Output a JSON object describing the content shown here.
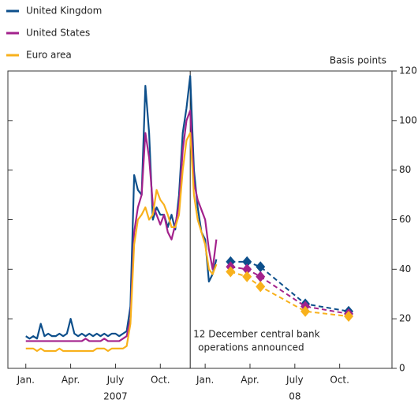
{
  "chart_data": {
    "type": "line",
    "y_axis_label": "Basis points",
    "xlim": [
      -1.2,
      24.5
    ],
    "ylim": [
      0,
      120
    ],
    "yticks": [
      0,
      20,
      40,
      60,
      80,
      100,
      120
    ],
    "xticks": [
      {
        "value": 0,
        "label": "Jan."
      },
      {
        "value": 3,
        "label": "Apr."
      },
      {
        "value": 6,
        "label": "July"
      },
      {
        "value": 9,
        "label": "Oct."
      },
      {
        "value": 12,
        "label": "Jan."
      },
      {
        "value": 15,
        "label": "Apr."
      },
      {
        "value": 18,
        "label": "July"
      },
      {
        "value": 21,
        "label": "Oct."
      }
    ],
    "year_labels": [
      {
        "value": 6,
        "label": "2007"
      },
      {
        "value": 18,
        "label": "08"
      }
    ],
    "annotation": {
      "x": 11,
      "lines": [
        "12 December central bank",
        "operations announced"
      ]
    },
    "x": [
      0,
      0.25,
      0.5,
      0.75,
      1,
      1.25,
      1.5,
      1.75,
      2,
      2.25,
      2.5,
      2.75,
      3,
      3.25,
      3.5,
      3.75,
      4,
      4.25,
      4.5,
      4.75,
      5,
      5.25,
      5.5,
      5.75,
      6,
      6.25,
      6.5,
      6.75,
      7,
      7.25,
      7.5,
      7.75,
      8,
      8.25,
      8.5,
      8.75,
      9,
      9.25,
      9.5,
      9.75,
      10,
      10.25,
      10.5,
      10.75,
      11,
      11.25,
      11.5,
      11.75,
      12,
      12.25,
      12.5,
      12.75
    ],
    "forward_x": [
      13.7,
      14.8,
      15.7,
      18.7,
      21.6
    ],
    "series": [
      {
        "name": "United Kingdom",
        "color": "#0d4f8b",
        "values": [
          13,
          12,
          13,
          12,
          18,
          13,
          14,
          13,
          13,
          14,
          13,
          14,
          20,
          14,
          13,
          14,
          13,
          14,
          13,
          14,
          13,
          14,
          13,
          14,
          14,
          13,
          14,
          15,
          25,
          78,
          72,
          70,
          114,
          95,
          60,
          65,
          62,
          62,
          57,
          62,
          56,
          70,
          95,
          105,
          118,
          80,
          65,
          55,
          52,
          35,
          38,
          44
        ],
        "forward_values": [
          43,
          43,
          41,
          26,
          23
        ]
      },
      {
        "name": "United States",
        "color": "#a3228c",
        "values": [
          11,
          11,
          11,
          11,
          11,
          11,
          11,
          11,
          11,
          11,
          11,
          11,
          11,
          11,
          11,
          11,
          12,
          11,
          11,
          11,
          11,
          12,
          11,
          11,
          11,
          11,
          12,
          13,
          20,
          55,
          65,
          70,
          95,
          85,
          66,
          62,
          58,
          62,
          55,
          52,
          58,
          66,
          88,
          100,
          104,
          75,
          68,
          64,
          60,
          48,
          40,
          52
        ],
        "forward_values": [
          41,
          40,
          37,
          25,
          22
        ]
      },
      {
        "name": "Euro area",
        "color": "#f8b11c",
        "values": [
          8,
          8,
          8,
          7,
          8,
          7,
          7,
          7,
          7,
          8,
          7,
          7,
          7,
          7,
          7,
          7,
          7,
          7,
          7,
          8,
          8,
          8,
          7,
          8,
          8,
          8,
          8,
          9,
          18,
          50,
          60,
          62,
          65,
          60,
          62,
          72,
          68,
          66,
          62,
          57,
          57,
          62,
          80,
          92,
          95,
          70,
          60,
          55,
          50,
          40,
          38,
          42
        ],
        "forward_values": [
          39,
          37,
          33,
          23,
          21
        ]
      }
    ]
  }
}
